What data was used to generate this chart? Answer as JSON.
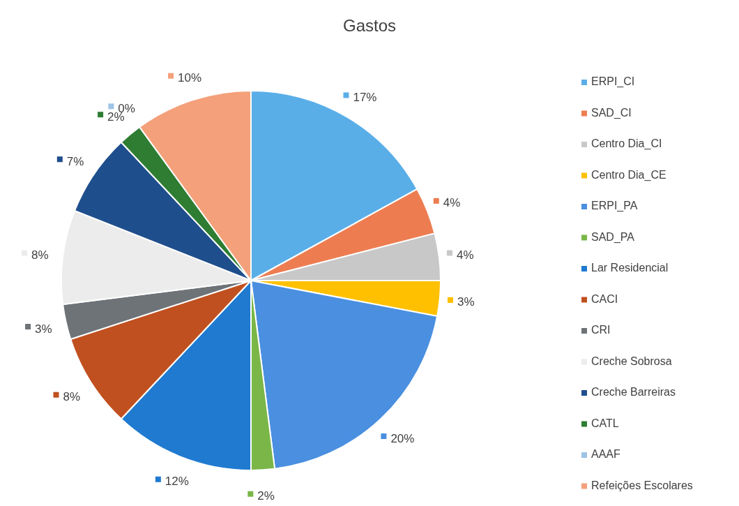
{
  "chart_data": {
    "type": "pie",
    "title": "Gastos",
    "categories": [
      "ERPI_CI",
      "SAD_CI",
      "Centro Dia_CI",
      "Centro Dia_CE",
      "ERPI_PA",
      "SAD_PA",
      "Lar Residencial",
      "CACI",
      "CRI",
      "Creche Sobrosa",
      "Creche Barreiras",
      "CATL",
      "AAAF",
      "Refeições Escolares"
    ],
    "values": [
      17,
      4,
      4,
      3,
      20,
      2,
      12,
      8,
      3,
      8,
      7,
      2,
      0,
      10
    ],
    "value_labels": [
      "17%",
      "4%",
      "4%",
      "3%",
      "20%",
      "2%",
      "12%",
      "8%",
      "3%",
      "8%",
      "7%",
      "2%",
      "0%",
      "10%"
    ],
    "colors": [
      "#5aaee8",
      "#ed7d51",
      "#c8c8c8",
      "#ffc000",
      "#4a8fe0",
      "#7ab648",
      "#1f7ad0",
      "#c0501f",
      "#6e7378",
      "#ececec",
      "#1f4e8c",
      "#2e7d32",
      "#9dc3e6",
      "#f4a07a"
    ],
    "legend": "right"
  }
}
